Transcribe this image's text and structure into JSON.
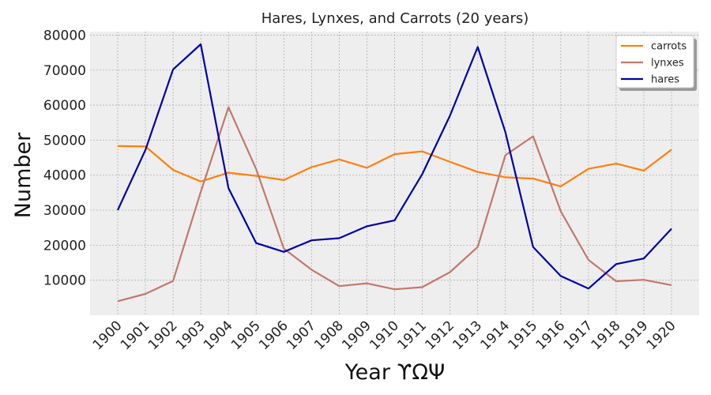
{
  "chart_data": {
    "type": "line",
    "title": "Hares, Lynxes, and Carrots (20 years)",
    "xlabel": "Year ϒΩΨ",
    "ylabel": "Number",
    "x": [
      1900,
      1901,
      1902,
      1903,
      1904,
      1905,
      1906,
      1907,
      1908,
      1909,
      1910,
      1911,
      1912,
      1913,
      1914,
      1915,
      1916,
      1917,
      1918,
      1919,
      1920
    ],
    "x_tick_labels": [
      "1900",
      "1901",
      "1902",
      "1903",
      "1904",
      "1905",
      "1906",
      "1907",
      "1908",
      "1909",
      "1910",
      "1911",
      "1912",
      "1913",
      "1914",
      "1915",
      "1916",
      "1917",
      "1918",
      "1919",
      "1920"
    ],
    "y_ticks": [
      10000,
      20000,
      30000,
      40000,
      50000,
      60000,
      70000,
      80000
    ],
    "y_tick_labels": [
      "10000",
      "20000",
      "30000",
      "40000",
      "50000",
      "60000",
      "70000",
      "80000"
    ],
    "ylim": [
      0,
      81000
    ],
    "grid": true,
    "legend_position": "top-right",
    "series": [
      {
        "name": "carrots",
        "color": "#ff7f0e",
        "values": [
          48300,
          48200,
          41500,
          38200,
          40700,
          39800,
          38600,
          42300,
          44500,
          42100,
          46000,
          46800,
          43800,
          40900,
          39400,
          39000,
          36800,
          41800,
          43300,
          41300,
          47300
        ]
      },
      {
        "name": "lynxes",
        "color": "#c0796e",
        "values": [
          4000,
          6100,
          9800,
          35200,
          59400,
          41700,
          19000,
          13000,
          8300,
          9100,
          7400,
          8000,
          12300,
          19500,
          45700,
          51100,
          29700,
          15800,
          9700,
          10100,
          8600
        ]
      },
      {
        "name": "hares",
        "color": "#0000aa",
        "values": [
          30000,
          47200,
          70200,
          77400,
          36300,
          20600,
          18100,
          21400,
          22000,
          25400,
          27100,
          40300,
          57000,
          76600,
          52300,
          19500,
          11200,
          7600,
          14600,
          16200,
          24700
        ]
      }
    ]
  }
}
